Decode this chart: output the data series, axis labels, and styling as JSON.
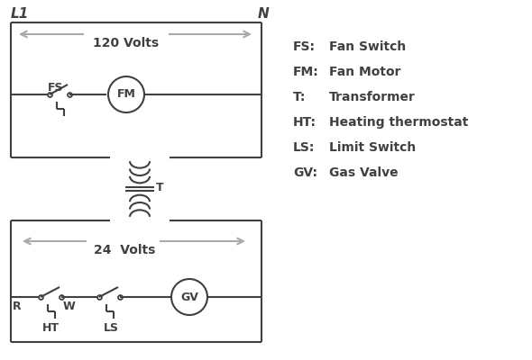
{
  "bg_color": "#ffffff",
  "line_color": "#404040",
  "gray_color": "#aaaaaa",
  "font_family": "DejaVu Sans",
  "legend": [
    [
      "FS:",
      "Fan Switch"
    ],
    [
      "FM:",
      "Fan Motor"
    ],
    [
      "T:",
      "Transformer"
    ],
    [
      "HT:",
      "Heating thermostat"
    ],
    [
      "LS:",
      "Limit Switch"
    ],
    [
      "GV:",
      "Gas Valve"
    ]
  ],
  "title_L1": "L1",
  "title_N": "N",
  "label_120V": "120 Volts",
  "label_24V": "24  Volts",
  "label_FS": "FS",
  "label_FM": "FM",
  "label_T": "T",
  "label_R": "R",
  "label_W": "W",
  "label_HT": "HT",
  "label_LS": "LS",
  "label_GV": "GV"
}
